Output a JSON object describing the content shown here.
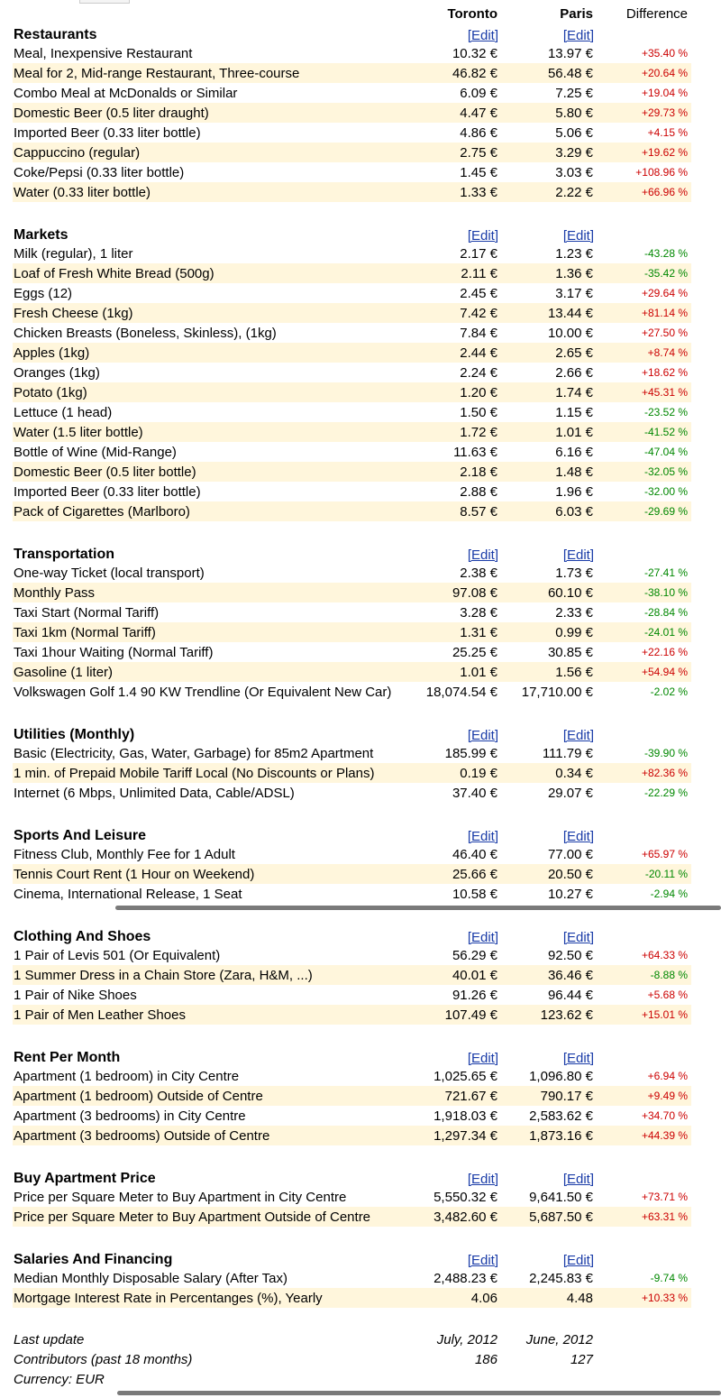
{
  "header": {
    "city_a": "Toronto",
    "city_b": "Paris",
    "difference": "Difference",
    "edit_label": "[Edit]"
  },
  "sections": [
    {
      "title": "Restaurants",
      "items": [
        {
          "name": "Meal, Inexpensive Restaurant",
          "a": "10.32 €",
          "b": "13.97 €",
          "diff": "+35.40 %",
          "sign": "pos"
        },
        {
          "name": "Meal for 2, Mid-range Restaurant, Three-course",
          "a": "46.82 €",
          "b": "56.48 €",
          "diff": "+20.64 %",
          "sign": "pos"
        },
        {
          "name": "Combo Meal at McDonalds or Similar",
          "a": "6.09 €",
          "b": "7.25 €",
          "diff": "+19.04 %",
          "sign": "pos"
        },
        {
          "name": "Domestic Beer (0.5 liter draught)",
          "a": "4.47 €",
          "b": "5.80 €",
          "diff": "+29.73 %",
          "sign": "pos"
        },
        {
          "name": "Imported Beer (0.33 liter bottle)",
          "a": "4.86 €",
          "b": "5.06 €",
          "diff": "+4.15 %",
          "sign": "pos"
        },
        {
          "name": "Cappuccino (regular)",
          "a": "2.75 €",
          "b": "3.29 €",
          "diff": "+19.62 %",
          "sign": "pos"
        },
        {
          "name": "Coke/Pepsi (0.33 liter bottle)",
          "a": "1.45 €",
          "b": "3.03 €",
          "diff": "+108.96 %",
          "sign": "pos"
        },
        {
          "name": "Water (0.33 liter bottle)",
          "a": "1.33 €",
          "b": "2.22 €",
          "diff": "+66.96 %",
          "sign": "pos"
        }
      ]
    },
    {
      "title": "Markets",
      "items": [
        {
          "name": "Milk (regular), 1 liter",
          "a": "2.17 €",
          "b": "1.23 €",
          "diff": "-43.28 %",
          "sign": "neg"
        },
        {
          "name": "Loaf of Fresh White Bread (500g)",
          "a": "2.11 €",
          "b": "1.36 €",
          "diff": "-35.42 %",
          "sign": "neg"
        },
        {
          "name": "Eggs (12)",
          "a": "2.45 €",
          "b": "3.17 €",
          "diff": "+29.64 %",
          "sign": "pos"
        },
        {
          "name": "Fresh Cheese (1kg)",
          "a": "7.42 €",
          "b": "13.44 €",
          "diff": "+81.14 %",
          "sign": "pos"
        },
        {
          "name": "Chicken Breasts (Boneless, Skinless), (1kg)",
          "a": "7.84 €",
          "b": "10.00 €",
          "diff": "+27.50 %",
          "sign": "pos"
        },
        {
          "name": "Apples (1kg)",
          "a": "2.44 €",
          "b": "2.65 €",
          "diff": "+8.74 %",
          "sign": "pos"
        },
        {
          "name": "Oranges (1kg)",
          "a": "2.24 €",
          "b": "2.66 €",
          "diff": "+18.62 %",
          "sign": "pos"
        },
        {
          "name": "Potato (1kg)",
          "a": "1.20 €",
          "b": "1.74 €",
          "diff": "+45.31 %",
          "sign": "pos"
        },
        {
          "name": "Lettuce (1 head)",
          "a": "1.50 €",
          "b": "1.15 €",
          "diff": "-23.52 %",
          "sign": "neg"
        },
        {
          "name": "Water (1.5 liter bottle)",
          "a": "1.72 €",
          "b": "1.01 €",
          "diff": "-41.52 %",
          "sign": "neg"
        },
        {
          "name": "Bottle of Wine (Mid-Range)",
          "a": "11.63 €",
          "b": "6.16 €",
          "diff": "-47.04 %",
          "sign": "neg"
        },
        {
          "name": "Domestic Beer (0.5 liter bottle)",
          "a": "2.18 €",
          "b": "1.48 €",
          "diff": "-32.05 %",
          "sign": "neg"
        },
        {
          "name": "Imported Beer (0.33 liter bottle)",
          "a": "2.88 €",
          "b": "1.96 €",
          "diff": "-32.00 %",
          "sign": "neg"
        },
        {
          "name": "Pack of Cigarettes (Marlboro)",
          "a": "8.57 €",
          "b": "6.03 €",
          "diff": "-29.69 %",
          "sign": "neg"
        }
      ]
    },
    {
      "title": "Transportation",
      "items": [
        {
          "name": "One-way Ticket (local transport)",
          "a": "2.38 €",
          "b": "1.73 €",
          "diff": "-27.41 %",
          "sign": "neg"
        },
        {
          "name": "Monthly Pass",
          "a": "97.08 €",
          "b": "60.10 €",
          "diff": "-38.10 %",
          "sign": "neg"
        },
        {
          "name": "Taxi Start (Normal Tariff)",
          "a": "3.28 €",
          "b": "2.33 €",
          "diff": "-28.84 %",
          "sign": "neg"
        },
        {
          "name": "Taxi 1km (Normal Tariff)",
          "a": "1.31 €",
          "b": "0.99 €",
          "diff": "-24.01 %",
          "sign": "neg"
        },
        {
          "name": "Taxi 1hour Waiting (Normal Tariff)",
          "a": "25.25 €",
          "b": "30.85 €",
          "diff": "+22.16 %",
          "sign": "pos"
        },
        {
          "name": "Gasoline (1 liter)",
          "a": "1.01 €",
          "b": "1.56 €",
          "diff": "+54.94 %",
          "sign": "pos"
        },
        {
          "name": "Volkswagen Golf 1.4 90 KW Trendline (Or Equivalent New Car)",
          "a": "18,074.54 €",
          "b": "17,710.00 €",
          "diff": "-2.02 %",
          "sign": "neg"
        }
      ]
    },
    {
      "title": "Utilities (Monthly)",
      "items": [
        {
          "name": "Basic (Electricity, Gas, Water, Garbage) for 85m2 Apartment",
          "a": "185.99 €",
          "b": "111.79 €",
          "diff": "-39.90 %",
          "sign": "neg"
        },
        {
          "name": "1 min. of Prepaid Mobile Tariff Local (No Discounts or Plans)",
          "a": "0.19 €",
          "b": "0.34 €",
          "diff": "+82.36 %",
          "sign": "pos"
        },
        {
          "name": "Internet (6 Mbps, Unlimited Data, Cable/ADSL)",
          "a": "37.40 €",
          "b": "29.07 €",
          "diff": "-22.29 %",
          "sign": "neg"
        }
      ]
    },
    {
      "title": "Sports And Leisure",
      "items": [
        {
          "name": "Fitness Club, Monthly Fee for 1 Adult",
          "a": "46.40 €",
          "b": "77.00 €",
          "diff": "+65.97 %",
          "sign": "pos"
        },
        {
          "name": "Tennis Court Rent (1 Hour on Weekend)",
          "a": "25.66 €",
          "b": "20.50 €",
          "diff": "-20.11 %",
          "sign": "neg"
        },
        {
          "name": "Cinema, International Release, 1 Seat",
          "a": "10.58 €",
          "b": "10.27 €",
          "diff": "-2.94 %",
          "sign": "neg"
        }
      ]
    },
    {
      "title": "Clothing And Shoes",
      "items": [
        {
          "name": "1 Pair of Levis 501 (Or Equivalent)",
          "a": "56.29 €",
          "b": "92.50 €",
          "diff": "+64.33 %",
          "sign": "pos"
        },
        {
          "name": "1 Summer Dress in a Chain Store (Zara, H&M, ...)",
          "a": "40.01 €",
          "b": "36.46 €",
          "diff": "-8.88 %",
          "sign": "neg"
        },
        {
          "name": "1 Pair of Nike Shoes",
          "a": "91.26 €",
          "b": "96.44 €",
          "diff": "+5.68 %",
          "sign": "pos"
        },
        {
          "name": "1 Pair of Men Leather Shoes",
          "a": "107.49 €",
          "b": "123.62 €",
          "diff": "+15.01 %",
          "sign": "pos"
        }
      ]
    },
    {
      "title": "Rent Per Month",
      "items": [
        {
          "name": "Apartment (1 bedroom) in City Centre",
          "a": "1,025.65 €",
          "b": "1,096.80 €",
          "diff": "+6.94 %",
          "sign": "pos"
        },
        {
          "name": "Apartment (1 bedroom) Outside of Centre",
          "a": "721.67 €",
          "b": "790.17 €",
          "diff": "+9.49 %",
          "sign": "pos"
        },
        {
          "name": "Apartment (3 bedrooms) in City Centre",
          "a": "1,918.03 €",
          "b": "2,583.62 €",
          "diff": "+34.70 %",
          "sign": "pos"
        },
        {
          "name": "Apartment (3 bedrooms) Outside of Centre",
          "a": "1,297.34 €",
          "b": "1,873.16 €",
          "diff": "+44.39 %",
          "sign": "pos"
        }
      ]
    },
    {
      "title": "Buy Apartment Price",
      "items": [
        {
          "name": "Price per Square Meter to Buy Apartment in City Centre",
          "a": "5,550.32 €",
          "b": "9,641.50 €",
          "diff": "+73.71 %",
          "sign": "pos"
        },
        {
          "name": "Price per Square Meter to Buy Apartment Outside of Centre",
          "a": "3,482.60 €",
          "b": "5,687.50 €",
          "diff": "+63.31 %",
          "sign": "pos"
        }
      ]
    },
    {
      "title": "Salaries And Financing",
      "items": [
        {
          "name": "Median Monthly Disposable Salary (After Tax)",
          "a": "2,488.23 €",
          "b": "2,245.83 €",
          "diff": "-9.74 %",
          "sign": "neg"
        },
        {
          "name": "Mortgage Interest Rate in Percentanges (%), Yearly",
          "a": "4.06",
          "b": "4.48",
          "diff": "+10.33 %",
          "sign": "pos"
        }
      ]
    }
  ],
  "footer": [
    {
      "label": "Last update",
      "a": "July, 2012",
      "b": "June, 2012"
    },
    {
      "label": "Contributors (past 18 months)",
      "a": "186",
      "b": "127"
    },
    {
      "label": "Currency: EUR",
      "a": "",
      "b": ""
    }
  ],
  "colors": {
    "positive": "#cc0000",
    "negative": "#008800",
    "row_highlight": "#fff6dc",
    "link": "#1a3ca8"
  }
}
